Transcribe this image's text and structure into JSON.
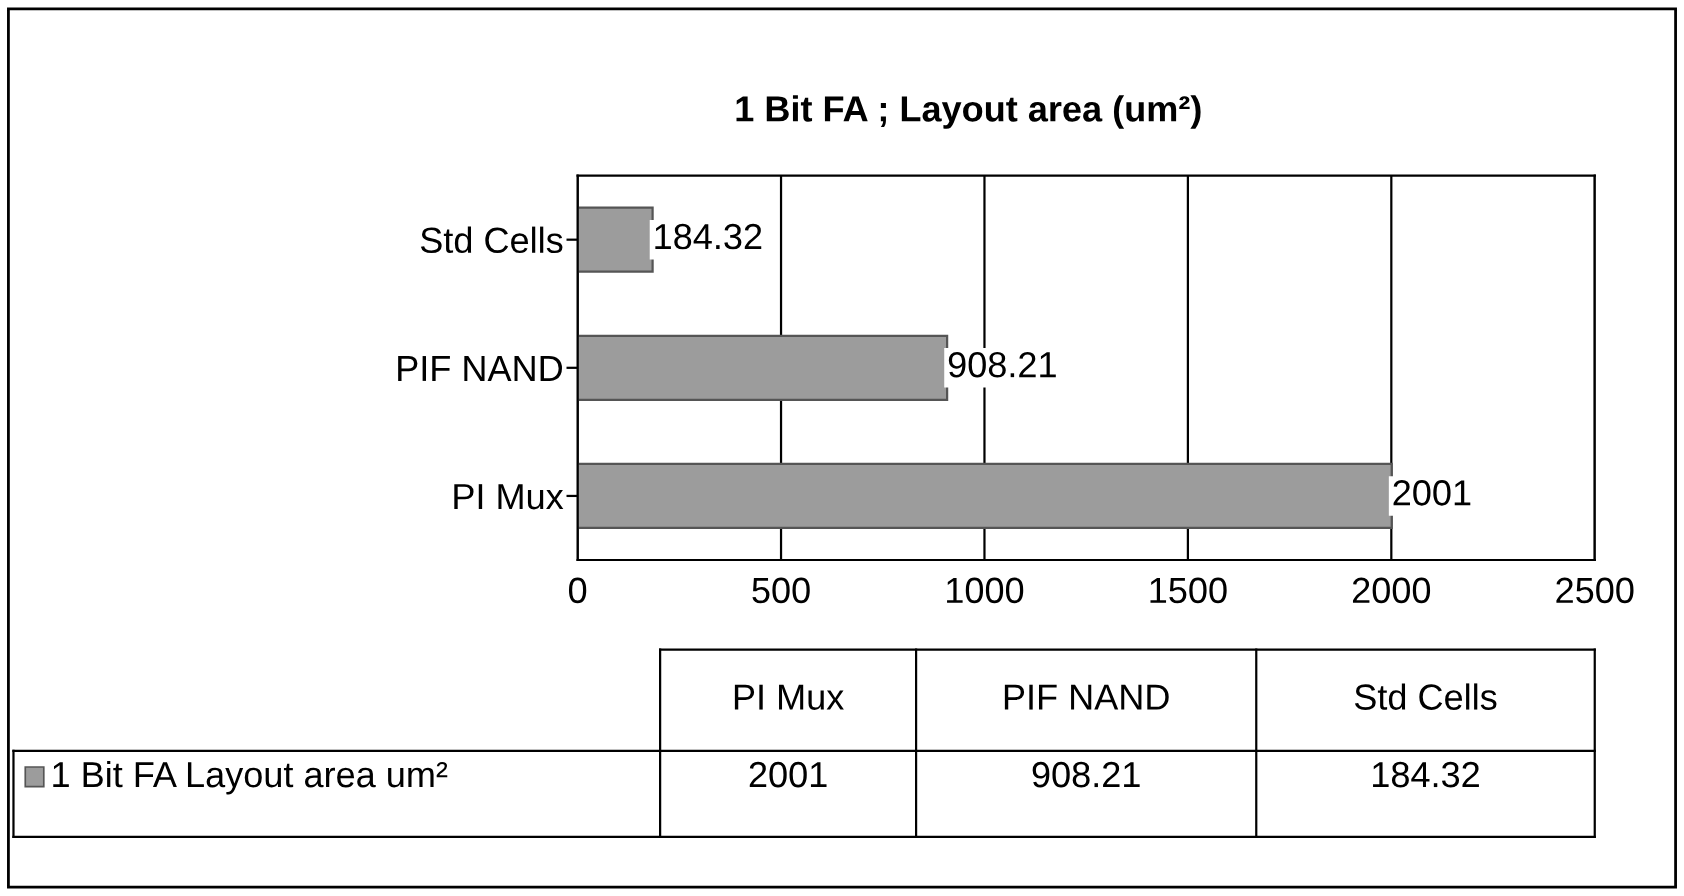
{
  "chart_data": {
    "type": "bar",
    "orientation": "horizontal",
    "title": "1 Bit FA ; Layout area (um²)",
    "categories": [
      "Std Cells",
      "PIF NAND",
      "PI Mux"
    ],
    "series": [
      {
        "name": "1 Bit FA Layout area um²",
        "color": "#9c9c9c",
        "values": [
          184.32,
          908.21,
          2001
        ]
      }
    ],
    "xlim": [
      0,
      2500
    ],
    "xticks": [
      0,
      500,
      1000,
      1500,
      2000,
      2500
    ],
    "annotations": [
      "2001",
      "908.21",
      "184.32"
    ],
    "grid": "x",
    "legend": "bottom",
    "data_labels": true
  }
}
